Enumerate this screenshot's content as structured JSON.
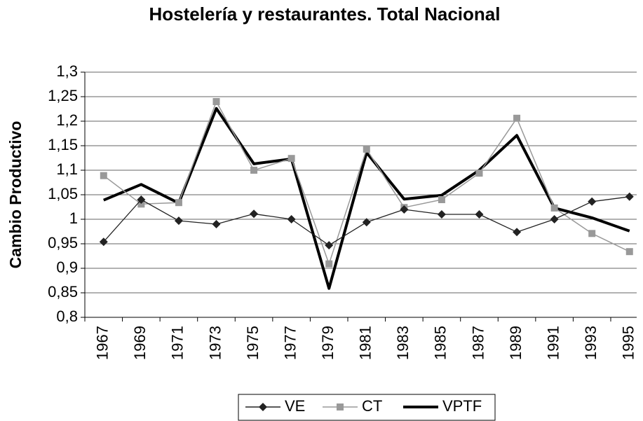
{
  "chart_data": {
    "type": "line",
    "title": "Hostelería y restaurantes. Total Nacional",
    "y_label": "Cambio Productivo",
    "categories": [
      "1967",
      "1969",
      "1971",
      "1973",
      "1975",
      "1977",
      "1979",
      "1981",
      "1983",
      "1985",
      "1987",
      "1989",
      "1991",
      "1993",
      "1995"
    ],
    "series": [
      {
        "name": "VE",
        "color": "#222222",
        "marker": "diamond",
        "values": [
          0.954,
          1.04,
          0.997,
          0.99,
          1.011,
          1.0,
          0.947,
          0.994,
          1.02,
          1.01,
          1.01,
          0.974,
          1.0,
          1.036,
          1.046
        ]
      },
      {
        "name": "CT",
        "color": "#999999",
        "marker": "square",
        "values": [
          1.089,
          1.031,
          1.034,
          1.24,
          1.1,
          1.124,
          0.909,
          1.143,
          1.024,
          1.04,
          1.094,
          1.206,
          1.023,
          0.971,
          0.934
        ]
      },
      {
        "name": "VPTF",
        "color": "#000000",
        "marker": "none",
        "values": [
          1.039,
          1.071,
          1.033,
          1.226,
          1.113,
          1.123,
          0.859,
          1.136,
          1.041,
          1.049,
          1.1,
          1.171,
          1.023,
          1.003,
          0.976
        ]
      }
    ],
    "ylim": [
      0.8,
      1.3
    ],
    "yticks": [
      {
        "value": 0.8,
        "label": "0,8"
      },
      {
        "value": 0.85,
        "label": "0,85"
      },
      {
        "value": 0.9,
        "label": "0,9"
      },
      {
        "value": 0.95,
        "label": "0,95"
      },
      1,
      {
        "value": 1.05,
        "label": "1,05"
      },
      {
        "value": 1.1,
        "label": "1,1"
      },
      {
        "value": 1.15,
        "label": "1,15"
      },
      {
        "value": 1.2,
        "label": "1,2"
      },
      {
        "value": 1.25,
        "label": "1,25"
      },
      {
        "value": 1.3,
        "label": "1,3"
      }
    ],
    "grid": true,
    "legend": "bottom"
  }
}
